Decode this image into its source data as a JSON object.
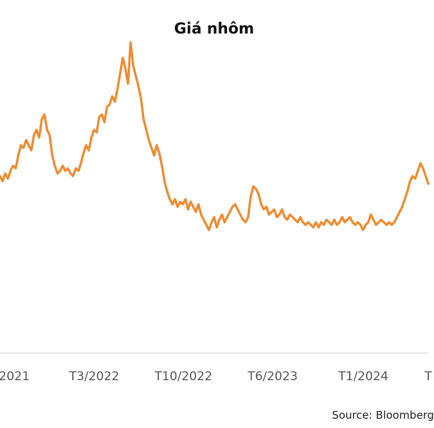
{
  "chart_data": {
    "type": "line",
    "title": "Giá nhôm",
    "xlabel": "",
    "ylabel": "",
    "line_color": "#f08a2e",
    "x_ticks": [
      "2021",
      "T3/2022",
      "T10/2022",
      "T6/2023",
      "T1/2024",
      "T"
    ],
    "grid": false,
    "series": [
      {
        "values": [
          0.62,
          0.6,
          0.63,
          0.61,
          0.64,
          0.66,
          0.65,
          0.7,
          0.74,
          0.73,
          0.76,
          0.74,
          0.72,
          0.78,
          0.8,
          0.77,
          0.84,
          0.86,
          0.8,
          0.78,
          0.7,
          0.66,
          0.63,
          0.64,
          0.66,
          0.64,
          0.65,
          0.63,
          0.62,
          0.65,
          0.64,
          0.67,
          0.71,
          0.74,
          0.72,
          0.77,
          0.8,
          0.79,
          0.85,
          0.86,
          0.83,
          0.89,
          0.9,
          0.93,
          0.91,
          0.96,
          1.02,
          1.08,
          1.04,
          0.98,
          1.14,
          1.05,
          1.01,
          0.97,
          0.92,
          0.84,
          0.8,
          0.76,
          0.73,
          0.7,
          0.74,
          0.71,
          0.66,
          0.6,
          0.56,
          0.53,
          0.51,
          0.53,
          0.5,
          0.52,
          0.51,
          0.53,
          0.49,
          0.52,
          0.5,
          0.48,
          0.51,
          0.47,
          0.45,
          0.43,
          0.41,
          0.44,
          0.46,
          0.42,
          0.45,
          0.47,
          0.44,
          0.46,
          0.48,
          0.5,
          0.51,
          0.49,
          0.47,
          0.45,
          0.44,
          0.46,
          0.54,
          0.58,
          0.57,
          0.55,
          0.51,
          0.49,
          0.5,
          0.47,
          0.48,
          0.49,
          0.46,
          0.47,
          0.49,
          0.46,
          0.45,
          0.47,
          0.46,
          0.45,
          0.44,
          0.46,
          0.44,
          0.43,
          0.44,
          0.43,
          0.42,
          0.44,
          0.42,
          0.44,
          0.43,
          0.45,
          0.44,
          0.43,
          0.45,
          0.43,
          0.44,
          0.46,
          0.44,
          0.45,
          0.46,
          0.44,
          0.43,
          0.44,
          0.43,
          0.41,
          0.43,
          0.44,
          0.47,
          0.45,
          0.43,
          0.44,
          0.45,
          0.44,
          0.43,
          0.44,
          0.43,
          0.44,
          0.46,
          0.48,
          0.5,
          0.53,
          0.56,
          0.6,
          0.62,
          0.61,
          0.64,
          0.67,
          0.65,
          0.62,
          0.59
        ]
      }
    ],
    "source": "Source: Bloomberg"
  }
}
